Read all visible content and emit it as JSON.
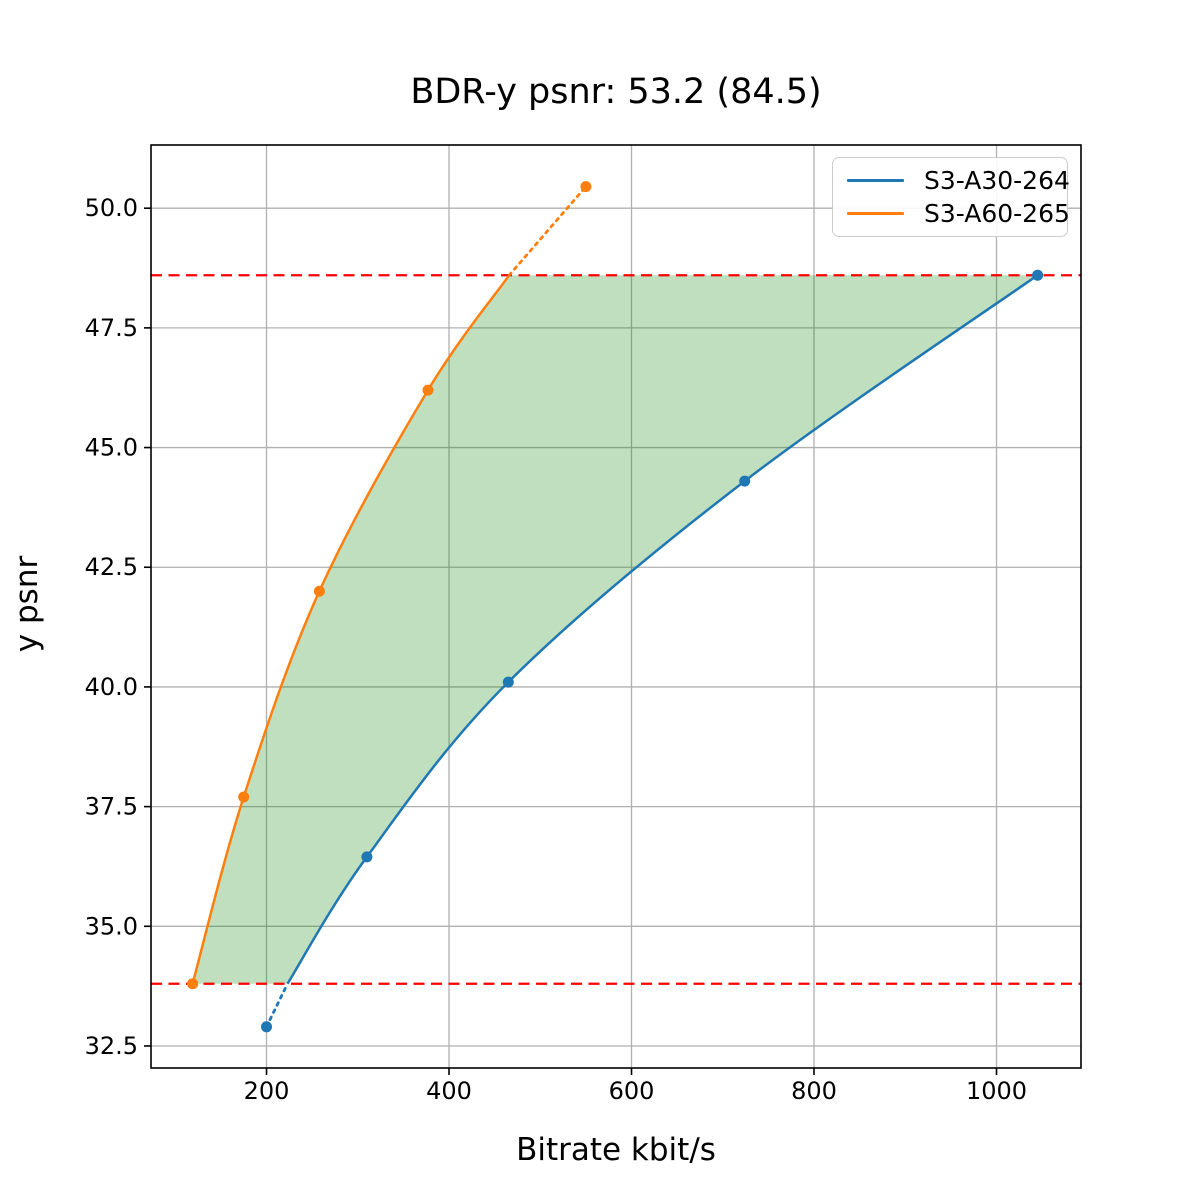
{
  "chart": {
    "title": "BDR-y psnr: 53.2 (84.5)",
    "xlabel": "Bitrate kbit/s",
    "ylabel": "y psnr"
  },
  "legend": {
    "position": "upper right",
    "items": [
      {
        "label": "S3-A30-264",
        "color": "#1f77b4"
      },
      {
        "label": "S3-A60-265",
        "color": "#ff7f0e"
      }
    ]
  },
  "chart_data": {
    "type": "line",
    "title": "BDR-y psnr: 53.2 (84.5)",
    "xlabel": "Bitrate kbit/s",
    "ylabel": "y psnr",
    "xlim": [
      73.4,
      1092.6
    ],
    "ylim": [
      32.04,
      51.32
    ],
    "x_ticks": [
      200,
      400,
      600,
      800,
      1000
    ],
    "y_ticks": [
      32.5,
      35.0,
      37.5,
      40.0,
      42.5,
      45.0,
      47.5,
      50.0
    ],
    "grid": true,
    "grid_color": "#b0b0b0",
    "series": [
      {
        "name": "S3-A30-264",
        "color": "#1f77b4",
        "points": [
          [
            200,
            32.9
          ],
          [
            310,
            36.45
          ],
          [
            465,
            40.1
          ],
          [
            724,
            44.3
          ],
          [
            1045,
            48.6
          ]
        ],
        "solid_curve": [
          [
            223,
            33.8
          ],
          [
            310,
            36.45
          ],
          [
            465,
            40.1
          ],
          [
            724,
            44.3
          ],
          [
            1045,
            48.6
          ]
        ],
        "dotted_curve": [
          [
            200,
            32.9
          ],
          [
            223,
            33.8
          ]
        ]
      },
      {
        "name": "S3-A60-265",
        "color": "#ff7f0e",
        "points": [
          [
            119,
            33.8
          ],
          [
            175,
            37.7
          ],
          [
            258,
            42.0
          ],
          [
            377,
            46.2
          ],
          [
            550,
            50.45
          ]
        ],
        "solid_curve": [
          [
            119,
            33.8
          ],
          [
            175,
            37.7
          ],
          [
            258,
            42.0
          ],
          [
            377,
            46.2
          ],
          [
            466,
            48.6
          ]
        ],
        "dotted_curve": [
          [
            466,
            48.6
          ],
          [
            550,
            50.45
          ]
        ]
      }
    ],
    "hlines": {
      "color": "#ff0000",
      "style": "dashed",
      "values": [
        33.8,
        48.6
      ]
    },
    "shaded_region": {
      "color": "#008000",
      "opacity": 0.25,
      "description": "BD-rate overlap area between the two rate-distortion curves for psnr range 33.8 to 48.6",
      "boundary_upper": [
        [
          119,
          33.8
        ],
        [
          175,
          37.7
        ],
        [
          258,
          42.0
        ],
        [
          377,
          46.2
        ],
        [
          466,
          48.6
        ]
      ],
      "boundary_lower": [
        [
          223,
          33.8
        ],
        [
          310,
          36.45
        ],
        [
          465,
          40.1
        ],
        [
          724,
          44.3
        ],
        [
          1045,
          48.6
        ]
      ]
    }
  }
}
